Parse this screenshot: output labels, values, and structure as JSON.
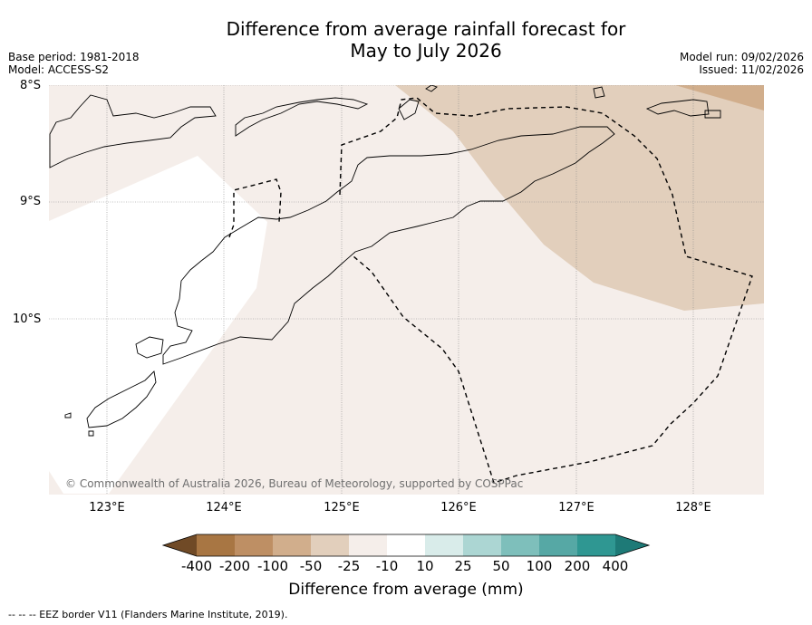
{
  "title_line1": "Difference from average rainfall forecast for",
  "title_line2": "May to July 2026",
  "base_period": "Base period: 1981-2018",
  "model": "Model: ACCESS-S2",
  "model_run": "Model run: 09/02/2026",
  "issued": "Issued: 11/02/2026",
  "lat_labels": [
    "8°S",
    "9°S",
    "10°S"
  ],
  "lon_labels": [
    "123°E",
    "124°E",
    "125°E",
    "126°E",
    "127°E",
    "128°E"
  ],
  "copyright": "© Commonwealth of Australia 2026, Bureau of Meteorology, supported by COSPPac",
  "colorbar": {
    "labels": [
      "-400",
      "-200",
      "-100",
      "-50",
      "-25",
      "-10",
      "10",
      "25",
      "50",
      "100",
      "200",
      "400"
    ],
    "title": "Difference from average (mm)",
    "colors": [
      "#704a26",
      "#a87643",
      "#be8f64",
      "#d1ae8c",
      "#e2cfbc",
      "#f5eeea",
      "#ffffff",
      "#d9ecea",
      "#acd6d3",
      "#7ebfbb",
      "#56a8a5",
      "#2f9792",
      "#1e7a77"
    ]
  },
  "footer": "--  --  -- EEZ border V11 (Flanders Marine Institute, 2019)."
}
